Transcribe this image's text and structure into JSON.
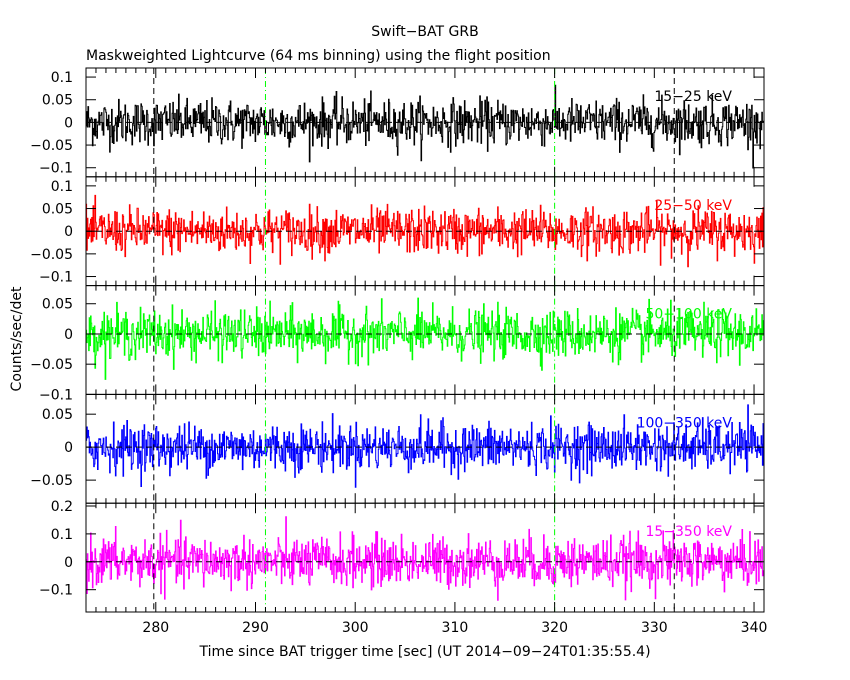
{
  "title": "Swift−BAT GRB",
  "subtitle": "Maskweighted Lightcurve (64 ms binning) using the flight position",
  "ylabel": "Counts/sec/det",
  "xlabel": "Time since BAT trigger time [sec] (UT 2014−09−24T01:35:55.4)",
  "chart_data": {
    "type": "line",
    "title": "Swift−BAT GRB",
    "subtitle": "Maskweighted Lightcurve (64 ms binning) using the flight position",
    "xlabel": "Time since BAT trigger time [sec] (UT 2014−09−24T01:35:55.4)",
    "ylabel": "Counts/sec/det",
    "xlim": [
      273,
      341
    ],
    "bin_seconds": 0.064,
    "xticks": [
      280,
      290,
      300,
      310,
      320,
      330,
      340
    ],
    "vlines": [
      {
        "x": 279.8,
        "color": "#000000",
        "style": "dashed"
      },
      {
        "x": 291.0,
        "color": "#00ff00",
        "style": "dash-dot"
      },
      {
        "x": 320.0,
        "color": "#00ff00",
        "style": "dash-dot"
      },
      {
        "x": 332.0,
        "color": "#000000",
        "style": "dashed"
      }
    ],
    "panels": [
      {
        "name": "15−25 keV",
        "color": "#000000",
        "ylim": [
          -0.12,
          0.12
        ],
        "yticks": [
          -0.1,
          -0.05,
          0,
          0.05,
          0.1
        ],
        "ytick_labels": [
          "−0.1",
          "−0.05",
          "0",
          "0.05",
          "0.1"
        ],
        "mean": 0.0,
        "noise_sigma": 0.025
      },
      {
        "name": "25−50 keV",
        "color": "#ff0000",
        "ylim": [
          -0.12,
          0.12
        ],
        "yticks": [
          -0.1,
          -0.05,
          0,
          0.05,
          0.1
        ],
        "ytick_labels": [
          "−0.1",
          "−0.05",
          "0",
          "0.05",
          "0.1"
        ],
        "mean": 0.0,
        "noise_sigma": 0.025
      },
      {
        "name": "50−100 keV",
        "color": "#00ff00",
        "ylim": [
          -0.1,
          0.08
        ],
        "yticks": [
          -0.1,
          -0.05,
          0,
          0.05
        ],
        "ytick_labels": [
          "−0.1",
          "−0.05",
          "0",
          "0.05"
        ],
        "mean": 0.0,
        "noise_sigma": 0.02
      },
      {
        "name": "100−350 keV",
        "color": "#0000ff",
        "ylim": [
          -0.085,
          0.08
        ],
        "yticks": [
          -0.05,
          0,
          0.05
        ],
        "ytick_labels": [
          "−0.05",
          "0",
          "0.05"
        ],
        "mean": 0.0,
        "noise_sigma": 0.018
      },
      {
        "name": "15−350 keV",
        "color": "#ff00ff",
        "ylim": [
          -0.18,
          0.21
        ],
        "yticks": [
          -0.1,
          0,
          0.1,
          0.2
        ],
        "ytick_labels": [
          "−0.1",
          "0",
          "0.1",
          "0.2"
        ],
        "mean": 0.0,
        "noise_sigma": 0.045
      }
    ]
  }
}
